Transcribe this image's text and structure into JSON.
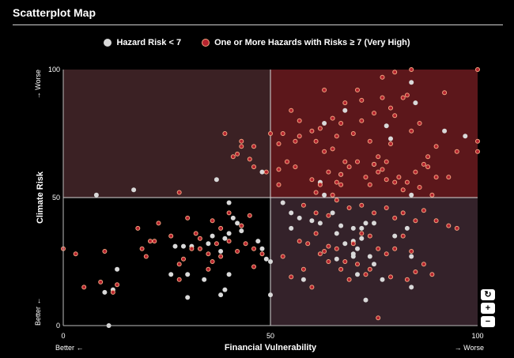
{
  "header": {
    "title": "Scatterplot Map"
  },
  "legend": {
    "items": [
      {
        "label": "Hazard Risk < 7",
        "color": "#d9d9d9"
      },
      {
        "label": "One or More Hazards with Risks ≥ 7 (Very High)",
        "color": "#b5222e"
      }
    ]
  },
  "controls": {
    "reset": "↻",
    "zoom_in": "+",
    "zoom_out": "−"
  },
  "colors": {
    "quad_top_left": "#3b2124",
    "quad_top_right": "#5c171b",
    "quad_bottom_left": "#000000",
    "quad_bottom_right": "#34222a",
    "low_fill": "#d9d9d9",
    "high_fill": "#b5222e",
    "high_stroke": "#f4a37f"
  },
  "chart_data": {
    "type": "scatter",
    "xlabel": "Financial Vulnerability",
    "ylabel": "Climate Risk",
    "xlim": [
      0,
      100
    ],
    "ylim": [
      0,
      100
    ],
    "x_ticks": [
      "0",
      "50",
      "100"
    ],
    "y_ticks": [
      "0",
      "50",
      "100"
    ],
    "x_low_label": "Better ←",
    "x_high_label": "→ Worse",
    "y_low_label": "Better ←",
    "y_high_label": "→ Worse",
    "quadrant_split": {
      "x": 50,
      "y": 50
    },
    "grid": false,
    "legend_position": "top-center",
    "series": [
      {
        "name": "Hazard Risk < 7",
        "points": [
          [
            8,
            51
          ],
          [
            17,
            53
          ],
          [
            37,
            57
          ],
          [
            40,
            48
          ],
          [
            41,
            42
          ],
          [
            42,
            40
          ],
          [
            40,
            36
          ],
          [
            39,
            34
          ],
          [
            43,
            37
          ],
          [
            43,
            39
          ],
          [
            36,
            35
          ],
          [
            35,
            32
          ],
          [
            38,
            29
          ],
          [
            29,
            31
          ],
          [
            31,
            31
          ],
          [
            27,
            31
          ],
          [
            26,
            20
          ],
          [
            30,
            20
          ],
          [
            34,
            18
          ],
          [
            39,
            14
          ],
          [
            40,
            20
          ],
          [
            38,
            12
          ],
          [
            30,
            11
          ],
          [
            12,
            14
          ],
          [
            13,
            22
          ],
          [
            10,
            13
          ],
          [
            11,
            0
          ],
          [
            47,
            33
          ],
          [
            48,
            30
          ],
          [
            49,
            26
          ],
          [
            50,
            25
          ],
          [
            50,
            12
          ],
          [
            48,
            60
          ],
          [
            53,
            48
          ],
          [
            55,
            44
          ],
          [
            60,
            41
          ],
          [
            65,
            44
          ],
          [
            70,
            38
          ],
          [
            70,
            33
          ],
          [
            72,
            38
          ],
          [
            75,
            40
          ],
          [
            66,
            36
          ],
          [
            68,
            32
          ],
          [
            71,
            30
          ],
          [
            72,
            34
          ],
          [
            73,
            40
          ],
          [
            74,
            27
          ],
          [
            75,
            24
          ],
          [
            80,
            35
          ],
          [
            83,
            38
          ],
          [
            84,
            27
          ],
          [
            58,
            18
          ],
          [
            66,
            26
          ],
          [
            70,
            27
          ],
          [
            71,
            20
          ],
          [
            73,
            10
          ],
          [
            77,
            18
          ],
          [
            84,
            15
          ],
          [
            55,
            38
          ],
          [
            57,
            42
          ],
          [
            62,
            40
          ],
          [
            67,
            39
          ],
          [
            70,
            28
          ],
          [
            63,
            51
          ],
          [
            62,
            56
          ],
          [
            67,
            59
          ],
          [
            75,
            63
          ],
          [
            78,
            78
          ],
          [
            63,
            79
          ],
          [
            68,
            84
          ],
          [
            79,
            73
          ],
          [
            85,
            87
          ],
          [
            84,
            95
          ],
          [
            84,
            51
          ],
          [
            92,
            76
          ],
          [
            97,
            74
          ]
        ]
      },
      {
        "name": "One or More Hazards with Risks ≥ 7 (Very High)",
        "points": [
          [
            52,
            71
          ],
          [
            53,
            75
          ],
          [
            55,
            84
          ],
          [
            57,
            80
          ],
          [
            57,
            74
          ],
          [
            56,
            72
          ],
          [
            60,
            76
          ],
          [
            61,
            72
          ],
          [
            62,
            77
          ],
          [
            63,
            68
          ],
          [
            65,
            69
          ],
          [
            66,
            74
          ],
          [
            64,
            60
          ],
          [
            67,
            59
          ],
          [
            68,
            64
          ],
          [
            70,
            75
          ],
          [
            72,
            80
          ],
          [
            74,
            72
          ],
          [
            75,
            63
          ],
          [
            76,
            66
          ],
          [
            76,
            60
          ],
          [
            78,
            64
          ],
          [
            79,
            71
          ],
          [
            80,
            56
          ],
          [
            82,
            53
          ],
          [
            84,
            76
          ],
          [
            86,
            79
          ],
          [
            88,
            66
          ],
          [
            90,
            70
          ],
          [
            92,
            91
          ],
          [
            95,
            68
          ],
          [
            100,
            72
          ],
          [
            100,
            68
          ],
          [
            63,
            92
          ],
          [
            65,
            81
          ],
          [
            67,
            79
          ],
          [
            68,
            87
          ],
          [
            71,
            92
          ],
          [
            72,
            88
          ],
          [
            75,
            83
          ],
          [
            77,
            89
          ],
          [
            79,
            85
          ],
          [
            80,
            82
          ],
          [
            82,
            89
          ],
          [
            83,
            90
          ],
          [
            85,
            60
          ],
          [
            87,
            63
          ],
          [
            52,
            55
          ],
          [
            52,
            61
          ],
          [
            54,
            64
          ],
          [
            56,
            62
          ],
          [
            60,
            57
          ],
          [
            61,
            52
          ],
          [
            62,
            55
          ],
          [
            65,
            51
          ],
          [
            66,
            56
          ],
          [
            67,
            55
          ],
          [
            69,
            62
          ],
          [
            71,
            64
          ],
          [
            73,
            58
          ],
          [
            74,
            55
          ],
          [
            77,
            61
          ],
          [
            78,
            57
          ],
          [
            81,
            58
          ],
          [
            83,
            56
          ],
          [
            86,
            54
          ],
          [
            88,
            62
          ],
          [
            89,
            51
          ],
          [
            90,
            58
          ],
          [
            93,
            58
          ],
          [
            77,
            97
          ],
          [
            80,
            99
          ],
          [
            84,
            100
          ],
          [
            100,
            100
          ],
          [
            58,
            47
          ],
          [
            61,
            44
          ],
          [
            64,
            43
          ],
          [
            66,
            49
          ],
          [
            69,
            46
          ],
          [
            72,
            47
          ],
          [
            75,
            44
          ],
          [
            78,
            46
          ],
          [
            80,
            42
          ],
          [
            82,
            44
          ],
          [
            85,
            41
          ],
          [
            87,
            45
          ],
          [
            90,
            41
          ],
          [
            93,
            39
          ],
          [
            95,
            38
          ],
          [
            57,
            33
          ],
          [
            59,
            32
          ],
          [
            61,
            36
          ],
          [
            63,
            29
          ],
          [
            64,
            31
          ],
          [
            66,
            30
          ],
          [
            68,
            25
          ],
          [
            70,
            32
          ],
          [
            72,
            36
          ],
          [
            74,
            35
          ],
          [
            76,
            30
          ],
          [
            78,
            28
          ],
          [
            80,
            30
          ],
          [
            82,
            35
          ],
          [
            84,
            29
          ],
          [
            85,
            21
          ],
          [
            87,
            24
          ],
          [
            89,
            20
          ],
          [
            53,
            27
          ],
          [
            55,
            19
          ],
          [
            58,
            22
          ],
          [
            60,
            15
          ],
          [
            62,
            28
          ],
          [
            64,
            25
          ],
          [
            67,
            22
          ],
          [
            69,
            18
          ],
          [
            71,
            24
          ],
          [
            73,
            20
          ],
          [
            74,
            22
          ],
          [
            76,
            3
          ],
          [
            79,
            19
          ],
          [
            83,
            18
          ],
          [
            50,
            75
          ],
          [
            49,
            60
          ],
          [
            46,
            62
          ],
          [
            45,
            65
          ],
          [
            43,
            72
          ],
          [
            43,
            70
          ],
          [
            42,
            67
          ],
          [
            41,
            66
          ],
          [
            46,
            70
          ],
          [
            36,
            41
          ],
          [
            40,
            44
          ],
          [
            43,
            39
          ],
          [
            45,
            43
          ],
          [
            46,
            30
          ],
          [
            46,
            23
          ],
          [
            48,
            28
          ],
          [
            44,
            32
          ],
          [
            42,
            29
          ],
          [
            40,
            33
          ],
          [
            38,
            38
          ],
          [
            37,
            32
          ],
          [
            35,
            28
          ],
          [
            33,
            34
          ],
          [
            31,
            30
          ],
          [
            29,
            26
          ],
          [
            28,
            18
          ],
          [
            30,
            42
          ],
          [
            32,
            36
          ],
          [
            33,
            30
          ],
          [
            35,
            22
          ],
          [
            36,
            25
          ],
          [
            38,
            27
          ],
          [
            28,
            52
          ],
          [
            39,
            75
          ],
          [
            0,
            30
          ],
          [
            3,
            28
          ],
          [
            5,
            15
          ],
          [
            9,
            17
          ],
          [
            10,
            29
          ],
          [
            12,
            13
          ],
          [
            13,
            16
          ],
          [
            18,
            38
          ],
          [
            19,
            30
          ],
          [
            20,
            27
          ],
          [
            21,
            33
          ],
          [
            22,
            33
          ],
          [
            23,
            40
          ],
          [
            26,
            35
          ],
          [
            28,
            24
          ]
        ]
      }
    ]
  }
}
